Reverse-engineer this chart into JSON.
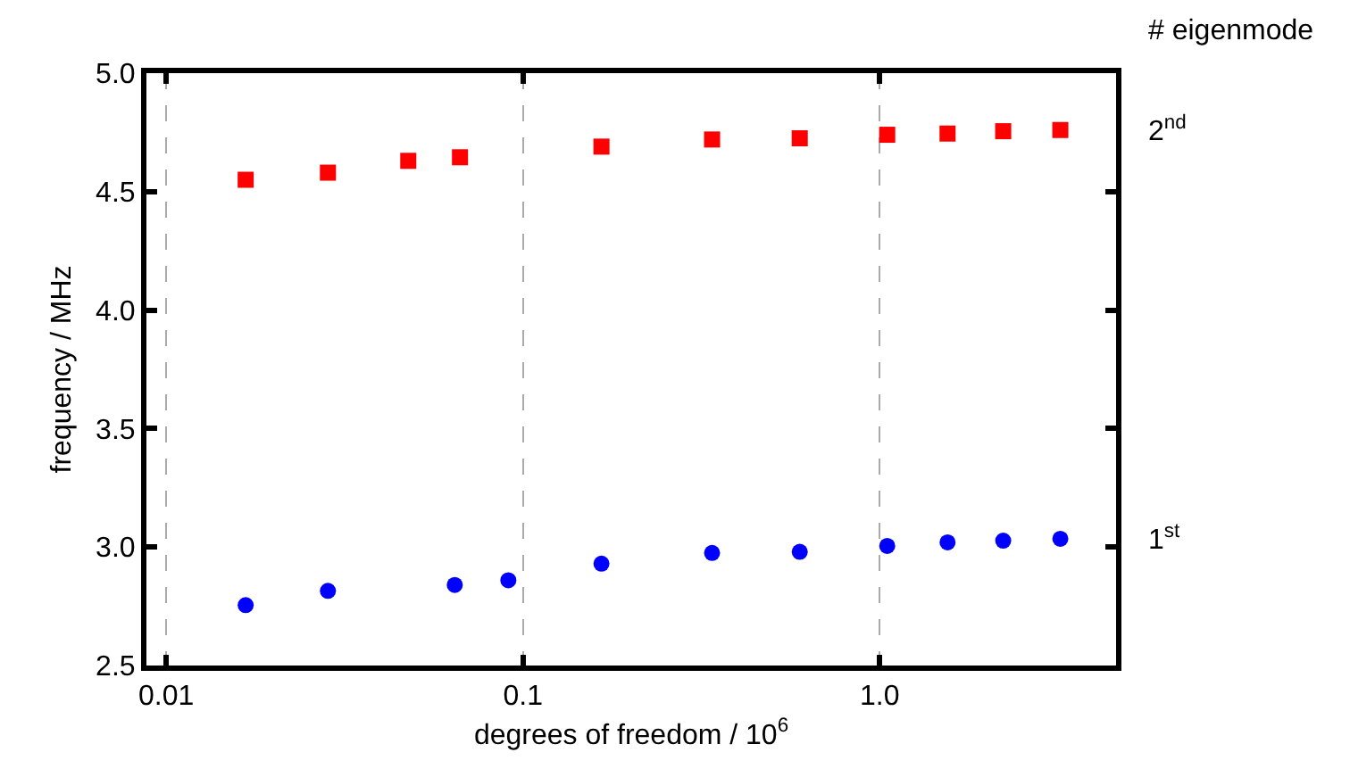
{
  "chart_data": {
    "type": "scatter",
    "xlabel": "degrees of freedom / 10$^{6}$",
    "ylabel": "frequency / MHz",
    "legend_title": "# eigenmode",
    "log": "x",
    "grid": "x",
    "xlim": [
      0.0088,
      4.6
    ],
    "xticks": [
      0.01,
      0.1,
      {
        "value": 1,
        "label": "1.0"
      }
    ],
    "ylim": [
      2.5,
      5.0
    ],
    "yticks": [
      2.5,
      {
        "value": 3,
        "label": "3.0"
      },
      3.5,
      {
        "value": 4,
        "label": "4.0"
      },
      4.5,
      {
        "value": 5,
        "label": "5.0"
      }
    ],
    "series": [
      {
        "name": "2$^{nd}$",
        "color": "#ff0000",
        "marker": "square",
        "x": [
          0.0167,
          0.0284,
          0.0477,
          0.0666,
          0.166,
          0.339,
          0.597,
          1.05,
          1.55,
          2.22,
          3.21
        ],
        "values": [
          4.55,
          4.58,
          4.63,
          4.645,
          4.69,
          4.72,
          4.725,
          4.74,
          4.745,
          4.755,
          4.76
        ]
      },
      {
        "name": "1$^{st}$",
        "color": "#0000ff",
        "marker": "circle",
        "x": [
          0.0167,
          0.0284,
          0.0644,
          0.091,
          0.166,
          0.339,
          0.597,
          1.05,
          1.55,
          2.22,
          3.21
        ],
        "values": [
          2.755,
          2.815,
          2.84,
          2.86,
          2.93,
          2.975,
          2.98,
          3.005,
          3.02,
          3.027,
          3.035
        ]
      }
    ]
  }
}
